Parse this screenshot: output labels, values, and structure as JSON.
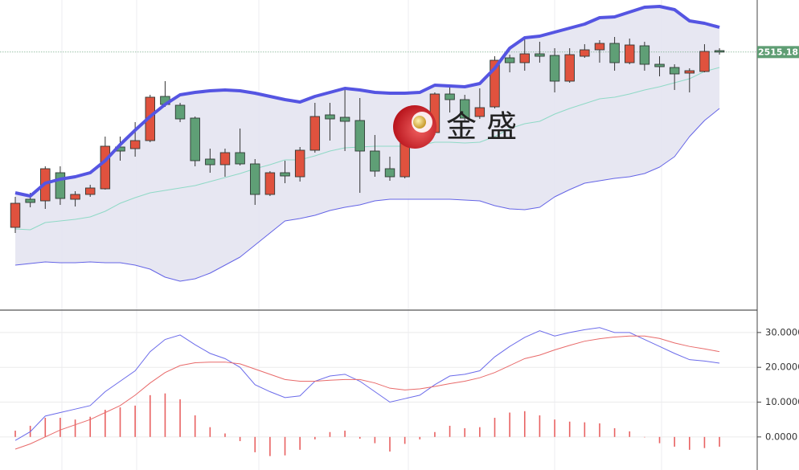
{
  "chart_data": [
    {
      "type": "candlestick",
      "watermark": "金 盛",
      "categories": [
        null,
        null,
        null,
        null,
        null,
        null,
        null,
        null,
        null,
        null,
        null,
        null,
        null,
        null,
        null,
        null,
        null,
        null,
        null,
        null,
        null,
        null,
        null,
        null,
        null,
        null,
        null,
        null,
        null,
        null,
        null,
        null,
        null,
        null,
        null,
        null,
        null,
        null,
        null,
        null,
        null,
        null,
        null,
        null,
        null,
        null,
        null,
        null
      ],
      "open": [
        2297,
        2332,
        2330,
        2365,
        2332,
        2338,
        2345,
        2397,
        2395,
        2405,
        2460,
        2449,
        2433,
        2382,
        2375,
        2390,
        2376,
        2338,
        2365,
        2360,
        2393,
        2437,
        2434,
        2430,
        2392,
        2370,
        2360,
        2405,
        2415,
        2463,
        2456,
        2435,
        2447,
        2508,
        2502,
        2513,
        2511,
        2479,
        2510,
        2518,
        2526,
        2502,
        2523,
        2500,
        2496,
        2489,
        2491,
        2517
      ],
      "high": [
        2335,
        2340,
        2373,
        2373,
        2342,
        2350,
        2410,
        2410,
        2428,
        2462,
        2479,
        2452,
        2435,
        2395,
        2395,
        2420,
        2382,
        2367,
        2380,
        2397,
        2452,
        2452,
        2470,
        2458,
        2412,
        2385,
        2410,
        2430,
        2465,
        2472,
        2462,
        2470,
        2510,
        2512,
        2535,
        2528,
        2520,
        2520,
        2525,
        2530,
        2534,
        2532,
        2528,
        2510,
        2500,
        2495,
        2525,
        2520
      ],
      "low": [
        2290,
        2322,
        2320,
        2325,
        2323,
        2335,
        2344,
        2380,
        2385,
        2403,
        2447,
        2428,
        2373,
        2365,
        2360,
        2374,
        2325,
        2336,
        2352,
        2354,
        2390,
        2405,
        2392,
        2340,
        2360,
        2355,
        2358,
        2400,
        2412,
        2440,
        2430,
        2432,
        2445,
        2490,
        2492,
        2502,
        2465,
        2477,
        2508,
        2502,
        2492,
        2500,
        2492,
        2485,
        2468,
        2465,
        2490,
        2512
      ],
      "close": [
        2327,
        2328,
        2370,
        2333,
        2338,
        2346,
        2398,
        2392,
        2405,
        2459,
        2450,
        2432,
        2380,
        2375,
        2390,
        2376,
        2338,
        2365,
        2361,
        2393,
        2435,
        2432,
        2429,
        2392,
        2367,
        2360,
        2405,
        2420,
        2463,
        2456,
        2433,
        2446,
        2505,
        2502,
        2513,
        2510,
        2479,
        2512,
        2518,
        2526,
        2502,
        2524,
        2500,
        2497,
        2488,
        2492,
        2516,
        2515.18
      ],
      "up_color": "#e0523e",
      "down_color": "#5f9f76",
      "overlays": [
        {
          "color": "#5555e2",
          "width": 4,
          "values": [
            2340,
            2336,
            2352,
            2357,
            2360,
            2365,
            2380,
            2400,
            2418,
            2435,
            2450,
            2462,
            2465,
            2467,
            2468,
            2467,
            2464,
            2460,
            2456,
            2453,
            2460,
            2465,
            2470,
            2468,
            2465,
            2464,
            2464,
            2465,
            2474,
            2473,
            2472,
            2476,
            2495,
            2520,
            2533,
            2535,
            2540,
            2545,
            2550,
            2558,
            2559,
            2565,
            2571,
            2572,
            2568,
            2554,
            2551,
            2546
          ]
        },
        {
          "color": "#8fd9c6",
          "width": 1,
          "values": [
            2295,
            2294,
            2303,
            2305,
            2307,
            2310,
            2317,
            2327,
            2334,
            2340,
            2343,
            2346,
            2349,
            2354,
            2359,
            2364,
            2370,
            2375,
            2381,
            2381,
            2386,
            2392,
            2396,
            2397,
            2398,
            2398,
            2398,
            2399,
            2403,
            2403,
            2402,
            2403,
            2410,
            2420,
            2426,
            2429,
            2438,
            2445,
            2451,
            2457,
            2459,
            2463,
            2468,
            2472,
            2477,
            2482,
            2491,
            2496
          ]
        },
        {
          "color": "#6464e6",
          "width": 1,
          "values": [
            2250,
            2252,
            2254,
            2253,
            2253,
            2254,
            2253,
            2253,
            2250,
            2245,
            2235,
            2230,
            2233,
            2240,
            2250,
            2260,
            2275,
            2290,
            2305,
            2308,
            2312,
            2318,
            2322,
            2325,
            2330,
            2332,
            2332,
            2332,
            2332,
            2332,
            2331,
            2330,
            2324,
            2320,
            2319,
            2322,
            2335,
            2344,
            2352,
            2355,
            2358,
            2360,
            2364,
            2372,
            2385,
            2410,
            2430,
            2445
          ]
        }
      ],
      "band_fill": "#e4e4f1",
      "last_price": 2515.18,
      "last_price_color": "#5f9e74",
      "ylim": [
        2195,
        2580
      ]
    },
    {
      "type": "macd",
      "series": [
        {
          "type": "bar",
          "color": "#e86262",
          "values": [
            1.8,
            3.2,
            5.5,
            5.5,
            5,
            5.8,
            7.8,
            8.5,
            9,
            12,
            12.5,
            10.8,
            6.2,
            2.8,
            1,
            -1.2,
            -4.4,
            -5.5,
            -5.3,
            -3.7,
            -0.7,
            1.4,
            1.8,
            -0.5,
            -1.8,
            -4.2,
            -2,
            -0.7,
            1.4,
            3.2,
            2.5,
            2.8,
            5.5,
            7,
            7.4,
            6.2,
            5,
            4.4,
            4.2,
            3.9,
            2.5,
            1.6,
            0,
            -1.8,
            -2.8,
            -3.7,
            -3.2,
            -2.8
          ]
        },
        {
          "type": "line",
          "color": "#6b6bea",
          "values": [
            -1,
            1.5,
            6,
            7,
            8,
            9,
            13,
            16,
            19,
            24.5,
            28,
            29.3,
            26.5,
            24,
            22.5,
            20,
            15,
            13,
            11.3,
            11.8,
            16,
            17.5,
            18,
            16,
            13,
            10,
            11,
            12,
            15,
            17.5,
            18,
            19,
            23,
            26,
            28.6,
            30.5,
            29,
            30,
            30.8,
            31.4,
            30,
            30,
            28,
            26,
            24,
            22.2,
            21.8,
            21.2
          ]
        },
        {
          "type": "line",
          "color": "#e86a6a",
          "values": [
            -3.5,
            -2,
            0,
            2,
            3.5,
            5,
            7,
            9,
            12,
            15.5,
            18.5,
            20.5,
            21.3,
            21.5,
            21.5,
            21,
            19.5,
            18,
            16.5,
            16,
            16,
            16.3,
            16.5,
            16.5,
            15.5,
            14,
            13.5,
            13.8,
            14.5,
            15.3,
            16,
            17,
            18.5,
            20.5,
            22.5,
            23.5,
            25,
            26.3,
            27.5,
            28.2,
            28.7,
            29,
            29,
            28.3,
            27,
            26,
            25.3,
            24.5
          ]
        }
      ],
      "ylim": [
        -9.5,
        36.2
      ],
      "yticks": [
        {
          "value": 30,
          "label": "30.0000"
        },
        {
          "value": 20,
          "label": "20.0000"
        },
        {
          "value": 10,
          "label": "10.0000"
        },
        {
          "value": 0,
          "label": "0.0000"
        }
      ],
      "grid": true
    }
  ]
}
